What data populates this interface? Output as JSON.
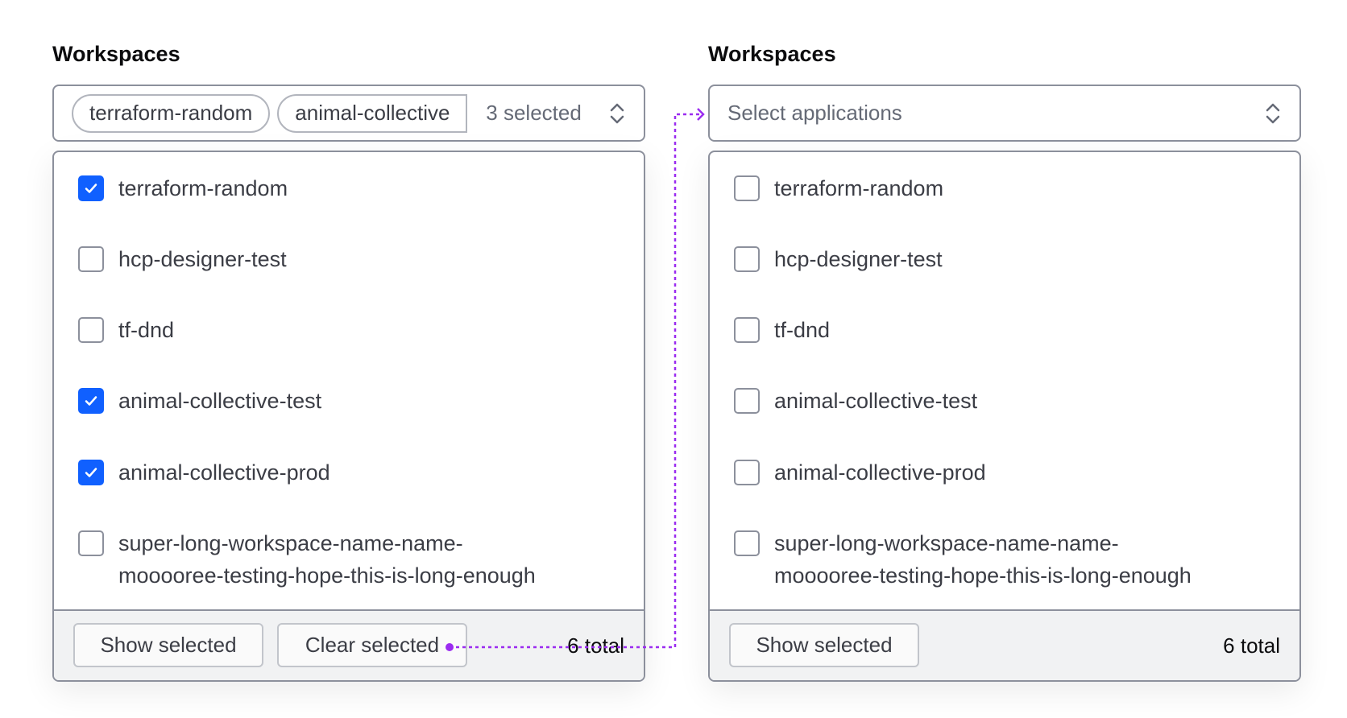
{
  "left": {
    "title": "Workspaces",
    "chips": [
      "terraform-random",
      "animal-collective"
    ],
    "selected_count": "3 selected",
    "options": [
      {
        "label": "terraform-random",
        "checked": true
      },
      {
        "label": "hcp-designer-test",
        "checked": false
      },
      {
        "label": "tf-dnd",
        "checked": false
      },
      {
        "label": "animal-collective-test",
        "checked": true
      },
      {
        "label": "animal-collective-prod",
        "checked": true
      },
      {
        "label": "super-long-workspace-name-name-",
        "label2": "mooooree-testing-hope-this-is-long-enough",
        "checked": false
      }
    ],
    "show_selected": "Show selected",
    "clear_selected": "Clear selected",
    "total": "6 total"
  },
  "right": {
    "title": "Workspaces",
    "placeholder": "Select applications",
    "options": [
      {
        "label": "terraform-random",
        "checked": false
      },
      {
        "label": "hcp-designer-test",
        "checked": false
      },
      {
        "label": "tf-dnd",
        "checked": false
      },
      {
        "label": "animal-collective-test",
        "checked": false
      },
      {
        "label": "animal-collective-prod",
        "checked": false
      },
      {
        "label": "super-long-workspace-name-name-",
        "label2": "mooooree-testing-hope-this-is-long-enough",
        "checked": false
      }
    ],
    "show_selected": "Show selected",
    "total": "6 total"
  },
  "colors": {
    "accent": "#1060ff",
    "annotation": "#9b2cf0",
    "border": "#8c909c"
  }
}
